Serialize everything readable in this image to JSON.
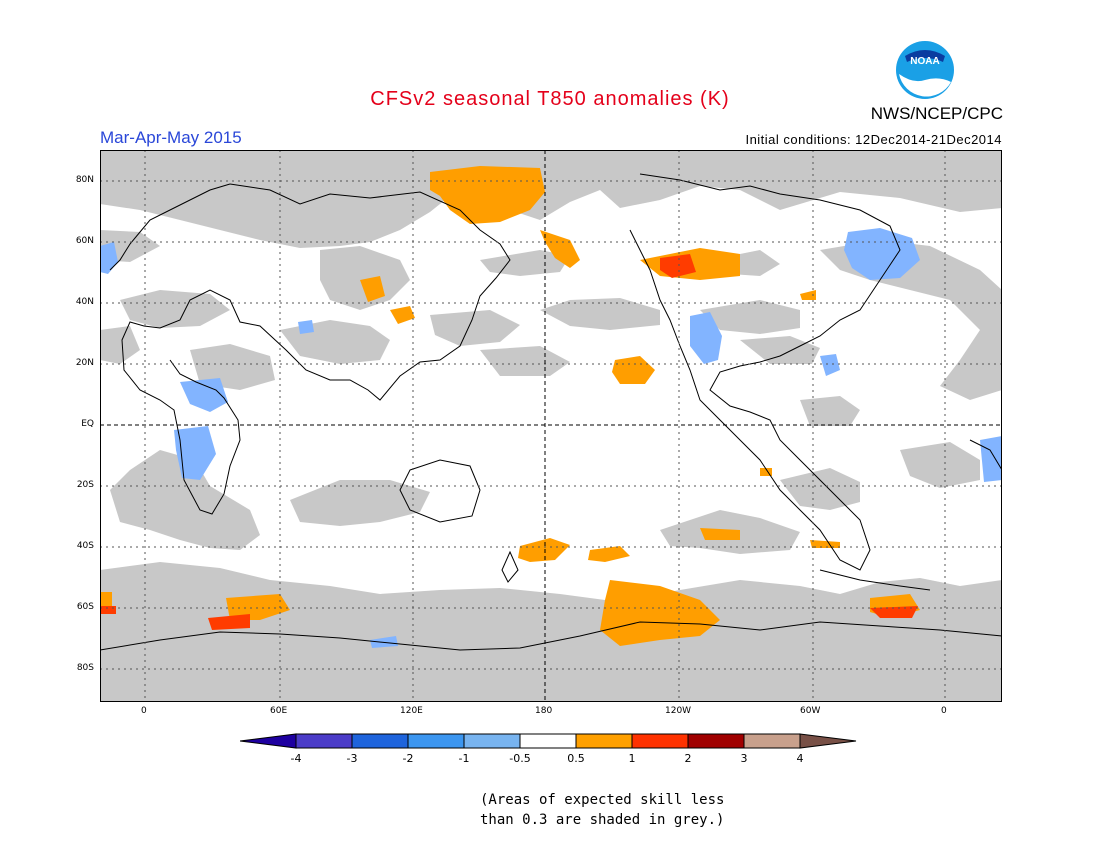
{
  "header": {
    "title": "CFSv2 seasonal T850 anomalies (K)",
    "season": "Mar-Apr-May 2015",
    "initial_conditions": "Initial conditions: 12Dec2014-21Dec2014",
    "agency": "NWS/NCEP/CPC",
    "logo_text": "NOAA"
  },
  "map": {
    "lat_labels": [
      "80N",
      "60N",
      "40N",
      "20N",
      "EQ",
      "20S",
      "40S",
      "60S",
      "80S"
    ],
    "lon_labels": [
      "0",
      "60E",
      "120E",
      "180",
      "120W",
      "60W",
      "0"
    ],
    "colors": {
      "grey": "#c8c8c8",
      "orange": "#ff9e00",
      "red": "#ff3c00",
      "lightblue": "#82b4ff",
      "blue": "#4a96f0"
    }
  },
  "colorbar": {
    "labels": [
      "-4",
      "-3",
      "-2",
      "-1",
      "-0.5",
      "0.5",
      "1",
      "2",
      "3",
      "4"
    ],
    "colors": [
      "#1e00a0",
      "#4b3cc8",
      "#1e64dc",
      "#3c96f0",
      "#78b4f0",
      "#ffffff",
      "#ffa000",
      "#ff3200",
      "#a00000",
      "#c8a08c",
      "#785046"
    ]
  },
  "footnote": {
    "line1": "(Areas of expected skill less",
    "line2": "than 0.3 are shaded in grey.)"
  }
}
